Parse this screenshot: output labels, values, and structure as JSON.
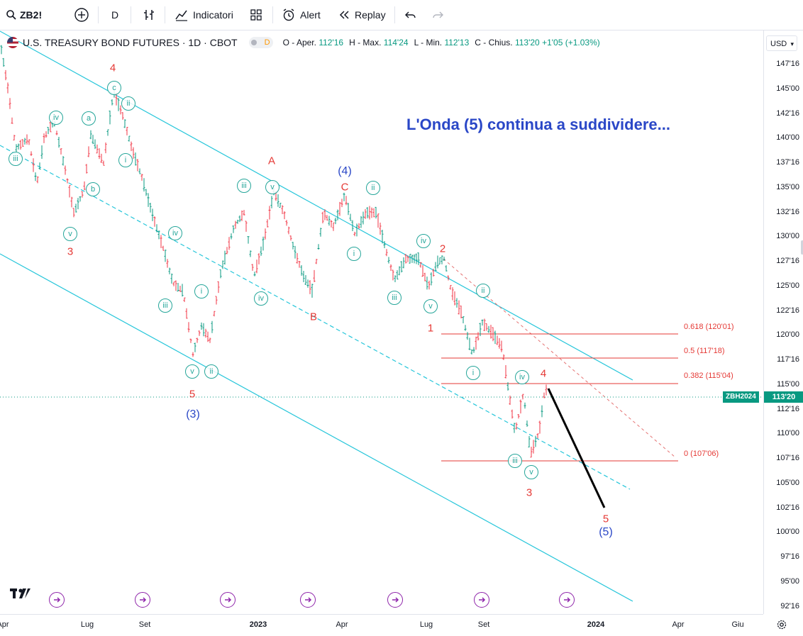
{
  "toolbar": {
    "symbol": "ZB2!",
    "interval": "D",
    "indicators_label": "Indicatori",
    "alert_label": "Alert",
    "replay_label": "Replay"
  },
  "legend": {
    "title": "U.S. TREASURY BOND FUTURES · 1D · CBOT",
    "badge": "D",
    "o_label": "O - Aper.",
    "o_value": "112'16",
    "h_label": "H - Max.",
    "h_value": "114'24",
    "l_label": "L - Min.",
    "l_value": "112'13",
    "c_label": "C - Chius.",
    "c_value": "113'20",
    "change": "+1'05 (+1.03%)"
  },
  "currency": "USD",
  "headline": "L'Onda (5) continua a suddividere...",
  "symbol_tag": "ZBH2024",
  "last_price": "113'20",
  "price_ticks": [
    "147'16",
    "145'00",
    "142'16",
    "140'00",
    "137'16",
    "135'00",
    "132'16",
    "130'00",
    "127'16",
    "125'00",
    "122'16",
    "120'00",
    "117'16",
    "115'00",
    "112'16",
    "110'00",
    "107'16",
    "105'00",
    "102'16",
    "100'00",
    "97'16",
    "95'00",
    "92'16"
  ],
  "time_ticks": [
    "Apr",
    "Lug",
    "Set",
    "2023",
    "Apr",
    "Lug",
    "Set",
    "2024",
    "Apr",
    "Giu"
  ],
  "fib_levels": [
    {
      "label": "0.618 (120'01)",
      "price": 120.03
    },
    {
      "label": "0.5 (117'18)",
      "price": 117.56
    },
    {
      "label": "0.382 (115'04)",
      "price": 115.13
    },
    {
      "label": "0 (107'06)",
      "price": 107.19
    }
  ],
  "wave_labels": {
    "red": [
      "4",
      "3",
      "A",
      "B",
      "C",
      "2",
      "1",
      "5",
      "4",
      "3",
      "5"
    ],
    "blue": [
      "(4)",
      "(3)",
      "(5)"
    ],
    "circled": [
      "c",
      "ii",
      "iv",
      "a",
      "iii",
      "b",
      "i",
      "v",
      "iv",
      "iii",
      "i",
      "v",
      "ii",
      "v",
      "iii",
      "iv",
      "ii",
      "iii",
      "i",
      "iv",
      "v",
      "ii",
      "i",
      "iv",
      "iii",
      "v"
    ]
  },
  "colors": {
    "channel": "#26c6da",
    "bull": "#089981",
    "bear": "#f23645",
    "fib": "#e53935",
    "headline": "#2a47c7",
    "projection": "#000000"
  },
  "tv_logo": "TV"
}
